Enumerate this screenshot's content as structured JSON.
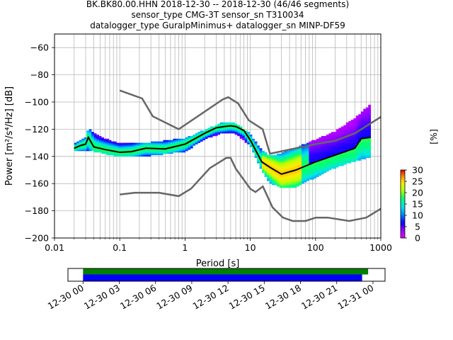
{
  "chart_data": {
    "type": "heatmap",
    "title_lines": [
      "BK.BK80.00.HHN   2018-12-30 -- 2018-12-30  (46/46 segments)",
      "sensor_type CMG-3T sensor_sn T310034",
      "datalogger_type GuralpMinimus+ datalogger_sn MINP-DF59"
    ],
    "xlabel": "Period [s]",
    "ylabel": "Power [m²/s⁴/Hz] [dB]",
    "x_scale": "log",
    "xlim": [
      0.01,
      1000
    ],
    "ylim": [
      -200,
      -50
    ],
    "x_ticks": [
      0.01,
      0.1,
      1,
      10,
      100,
      1000
    ],
    "x_tick_labels": [
      "0.01",
      "0.1",
      "1",
      "10",
      "100",
      "1000"
    ],
    "y_ticks": [
      -200,
      -180,
      -160,
      -140,
      -120,
      -100,
      -80,
      -60
    ],
    "y_tick_labels": [
      "−200",
      "−180",
      "−160",
      "−140",
      "−120",
      "−100",
      "−80",
      "−60"
    ],
    "grid": "on",
    "colorbar": {
      "label": "[%]",
      "range": [
        0,
        30
      ],
      "ticks": [
        0,
        5,
        10,
        15,
        20,
        25,
        30
      ],
      "tick_labels": [
        "0",
        "5",
        "10",
        "15",
        "20",
        "25",
        "30"
      ]
    },
    "nhnm": {
      "x": [
        0.1,
        0.22,
        0.32,
        0.8,
        3.8,
        4.6,
        6.5,
        9.5,
        15.5,
        20,
        100,
        200,
        400,
        1000
      ],
      "y": [
        -91.5,
        -97.4,
        -110.5,
        -120,
        -98,
        -96.5,
        -101,
        -113.5,
        -120,
        -138,
        -131,
        -128.5,
        -123,
        -111
      ]
    },
    "nlnm": {
      "x": [
        0.1,
        0.17,
        0.4,
        0.8,
        1.24,
        2.4,
        4.3,
        5,
        6,
        10,
        12,
        15.6,
        21.9,
        31.6,
        45,
        70,
        101,
        154,
        328,
        600,
        1000
      ],
      "y": [
        -168,
        -166.7,
        -166.7,
        -169.2,
        -163.7,
        -148.6,
        -141.1,
        -141.1,
        -149,
        -163.8,
        -166.2,
        -162.1,
        -177.5,
        -185,
        -187.5,
        -187.5,
        -185,
        -185,
        -187.5,
        -185,
        -178.5
      ]
    },
    "mode": {
      "x": [
        0.02,
        0.025,
        0.03,
        0.033,
        0.04,
        0.06,
        0.1,
        0.15,
        0.25,
        0.5,
        1,
        2,
        3,
        4,
        5,
        6,
        8,
        10,
        15,
        20,
        30,
        50,
        100,
        200,
        400,
        500,
        700
      ],
      "y": [
        -134,
        -132,
        -131,
        -126,
        -133,
        -135,
        -137,
        -136.5,
        -134,
        -134.5,
        -131,
        -123,
        -119,
        -118,
        -117.5,
        -118,
        -121,
        -128,
        -144,
        -148,
        -153,
        -150,
        -144,
        -139,
        -134,
        -127,
        -126
      ]
    },
    "spread_upper": {
      "x": [
        0.02,
        0.03,
        0.033,
        0.05,
        0.1,
        0.3,
        1,
        2,
        4,
        6,
        10,
        15,
        20,
        30,
        50,
        100,
        200,
        400,
        700
      ],
      "y": [
        -131,
        -126,
        -120,
        -126,
        -131,
        -130,
        -127,
        -121,
        -115,
        -116,
        -124,
        -136,
        -140,
        -138,
        -134,
        -128,
        -122,
        -112,
        -102
      ]
    },
    "spread_lower": {
      "x": [
        0.02,
        0.03,
        0.05,
        0.1,
        0.3,
        1,
        2,
        4,
        6,
        10,
        15,
        20,
        30,
        50,
        100,
        200,
        400,
        700
      ],
      "y": [
        -136,
        -135,
        -137,
        -140,
        -139,
        -136,
        -127,
        -122,
        -123,
        -132,
        -150,
        -159,
        -163,
        -162,
        -155,
        -148,
        -143,
        -140
      ]
    },
    "timeline": {
      "tick_labels": [
        "12-30 00",
        "12-30 03",
        "12-30 06",
        "12-30 09",
        "12-30 12",
        "12-30 15",
        "12-30 18",
        "12-30 21",
        "12-31 00"
      ],
      "range_hours": [
        -1.25,
        25
      ],
      "data_coverage_hours": [
        0,
        23.6
      ],
      "psd_coverage_hours": [
        0,
        23.1
      ],
      "colors": {
        "data": "#008000",
        "psd": "#0000ff"
      }
    }
  }
}
